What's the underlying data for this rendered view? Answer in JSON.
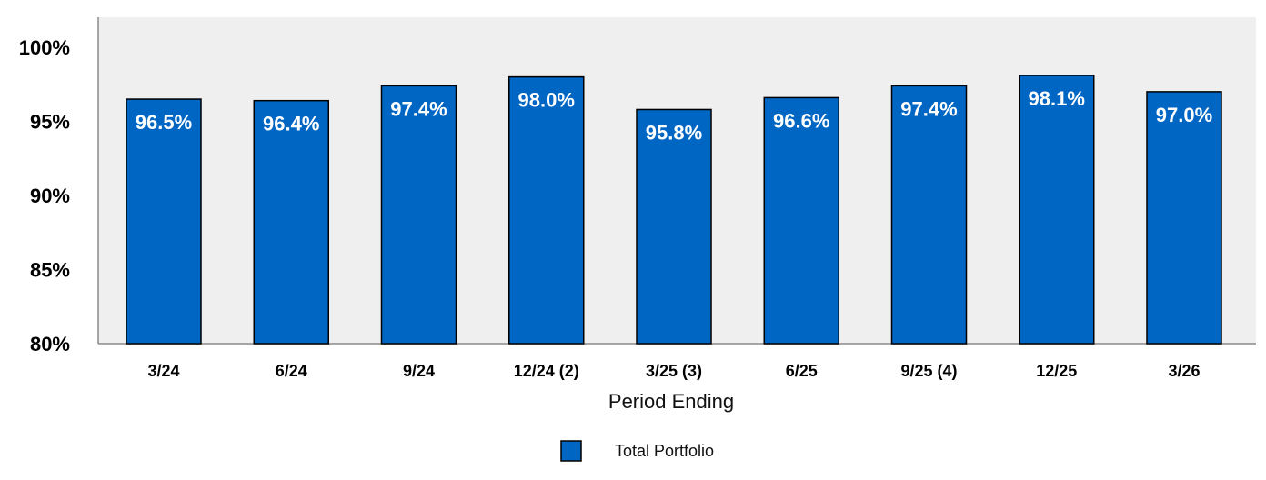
{
  "chart_data": {
    "type": "bar",
    "title": "",
    "xlabel": "Period Ending",
    "ylabel": "",
    "categories": [
      "3/24",
      "6/24",
      "9/24",
      "12/24 (2)",
      "3/25 (3)",
      "6/25",
      "9/25 (4)",
      "12/25",
      "3/26"
    ],
    "series": [
      {
        "name": "Total Portfolio",
        "values": [
          96.5,
          96.4,
          97.4,
          98.0,
          95.8,
          96.6,
          97.4,
          98.1,
          97.0
        ],
        "labels": [
          "96.5%",
          "96.4%",
          "97.4%",
          "98.0%",
          "95.8%",
          "96.6%",
          "97.4%",
          "98.1%",
          "97.0%"
        ],
        "color": "#0066C4"
      }
    ],
    "ylim": [
      80,
      100
    ],
    "yticks": [
      80,
      85,
      90,
      95,
      100
    ],
    "ytick_labels": [
      "80%",
      "85%",
      "90%",
      "95%",
      "100%"
    ],
    "grid": false,
    "legend_position": "bottom-center",
    "plot_background": "#EFEFEF",
    "bar_outline": "#000000"
  }
}
